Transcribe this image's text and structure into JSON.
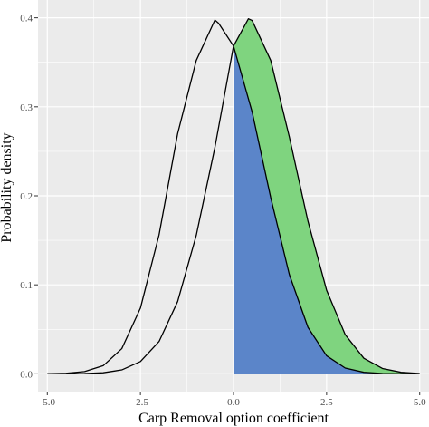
{
  "chart_data": {
    "type": "area",
    "title": "",
    "xlabel": "Carp Removal option coefficient",
    "ylabel": "Probability density",
    "xlim": [
      -5.25,
      5.25
    ],
    "ylim": [
      -0.02,
      0.42
    ],
    "x_ticks": [
      {
        "value": -5.0,
        "label": "-5.0"
      },
      {
        "value": -2.5,
        "label": "-2.5"
      },
      {
        "value": 0.0,
        "label": "0.0"
      },
      {
        "value": 2.5,
        "label": "2.5"
      },
      {
        "value": 5.0,
        "label": "5.0"
      }
    ],
    "y_ticks": [
      {
        "value": 0.0,
        "label": "0.0"
      },
      {
        "value": 0.1,
        "label": "0.1"
      },
      {
        "value": 0.2,
        "label": "0.2"
      },
      {
        "value": 0.3,
        "label": "0.3"
      },
      {
        "value": 0.4,
        "label": "0.4"
      }
    ],
    "grid": true,
    "series": [
      {
        "x": [
          -5.0,
          -4.5,
          -4.0,
          -3.5,
          -3.0,
          -2.5,
          -2.0,
          -1.5,
          -1.0,
          -0.5,
          -0.4,
          0.0,
          0.5,
          1.0,
          1.5,
          2.0,
          2.5,
          3.0,
          3.5,
          4.0,
          4.5,
          5.0
        ],
        "y": [
          0.0001,
          0.0006,
          0.0025,
          0.0091,
          0.0283,
          0.0738,
          0.1561,
          0.2699,
          0.3521,
          0.3975,
          0.3939,
          0.3683,
          0.2943,
          0.1979,
          0.1115,
          0.0522,
          0.0203,
          0.0065,
          0.0017,
          0.0004,
          0.0001,
          0.0
        ],
        "fill": "none",
        "stroke": "#000000"
      },
      {
        "x": [
          -5.0,
          -4.5,
          -4.0,
          -3.5,
          -3.0,
          -2.5,
          -2.0,
          -1.5,
          -1.0,
          -0.5,
          0.0,
          0.4,
          0.5,
          1.0,
          1.5,
          2.0,
          2.5,
          3.0,
          3.5,
          4.0,
          4.5,
          5.0
        ],
        "y": [
          0.0,
          0.0001,
          0.0003,
          0.0012,
          0.0044,
          0.0138,
          0.0363,
          0.0813,
          0.1556,
          0.2543,
          0.3683,
          0.3989,
          0.397,
          0.3521,
          0.2661,
          0.1714,
          0.094,
          0.044,
          0.0175,
          0.006,
          0.0017,
          0.0004
        ],
        "fill": "#7fd47f",
        "stroke": "#000000"
      }
    ],
    "overlap_fill": "#5b85c9",
    "overlap_from_x": 0.0
  }
}
